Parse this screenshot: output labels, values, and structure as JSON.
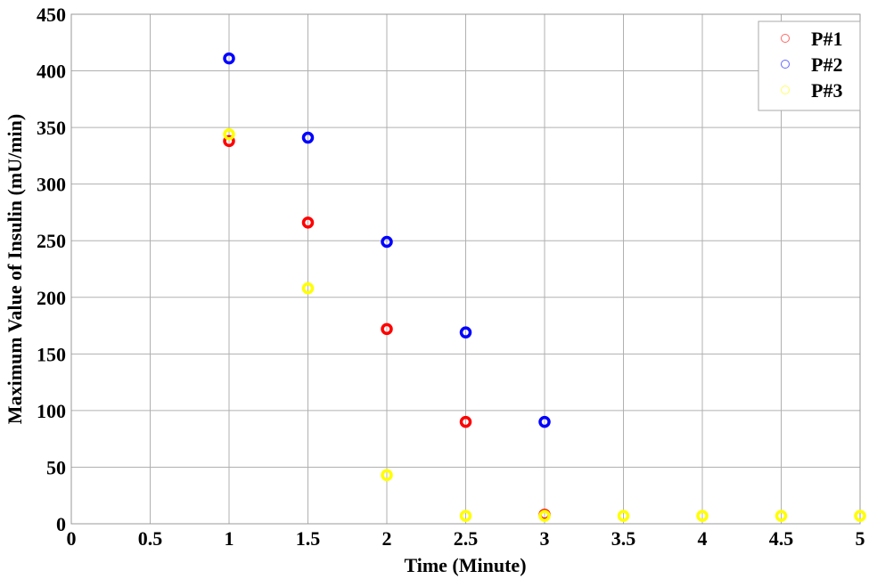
{
  "chart_data": {
    "type": "scatter",
    "title": "",
    "xlabel": "Time (Minute)",
    "ylabel": "Maximum Value of Insulin (mU/min)",
    "xlim": [
      0,
      5
    ],
    "ylim": [
      0,
      450
    ],
    "xticks": [
      0,
      0.5,
      1,
      1.5,
      2,
      2.5,
      3,
      3.5,
      4,
      4.5,
      5
    ],
    "xtick_labels": [
      "0",
      "0.5",
      "1",
      "1.5",
      "2",
      "2.5",
      "3",
      "3.5",
      "4",
      "4.5",
      "5"
    ],
    "yticks": [
      0,
      50,
      100,
      150,
      200,
      250,
      300,
      350,
      400,
      450
    ],
    "ytick_labels": [
      "0",
      "50",
      "100",
      "150",
      "200",
      "250",
      "300",
      "350",
      "400",
      "450"
    ],
    "grid": true,
    "legend_position": "upper right",
    "series": [
      {
        "name": "P#1",
        "color": "#ff0000",
        "x": [
          1,
          1.5,
          2,
          2.5,
          3
        ],
        "y": [
          338,
          266,
          172,
          90,
          8
        ]
      },
      {
        "name": "P#2",
        "color": "#0000ff",
        "x": [
          1,
          1.5,
          2,
          2.5,
          3
        ],
        "y": [
          411,
          341,
          249,
          169,
          90
        ]
      },
      {
        "name": "P#3",
        "color": "#ffff00",
        "x": [
          1,
          1.5,
          2,
          2.5,
          3,
          3.5,
          4,
          4.5,
          5
        ],
        "y": [
          344,
          208,
          43,
          7,
          7,
          7,
          7,
          7,
          7
        ]
      }
    ]
  }
}
